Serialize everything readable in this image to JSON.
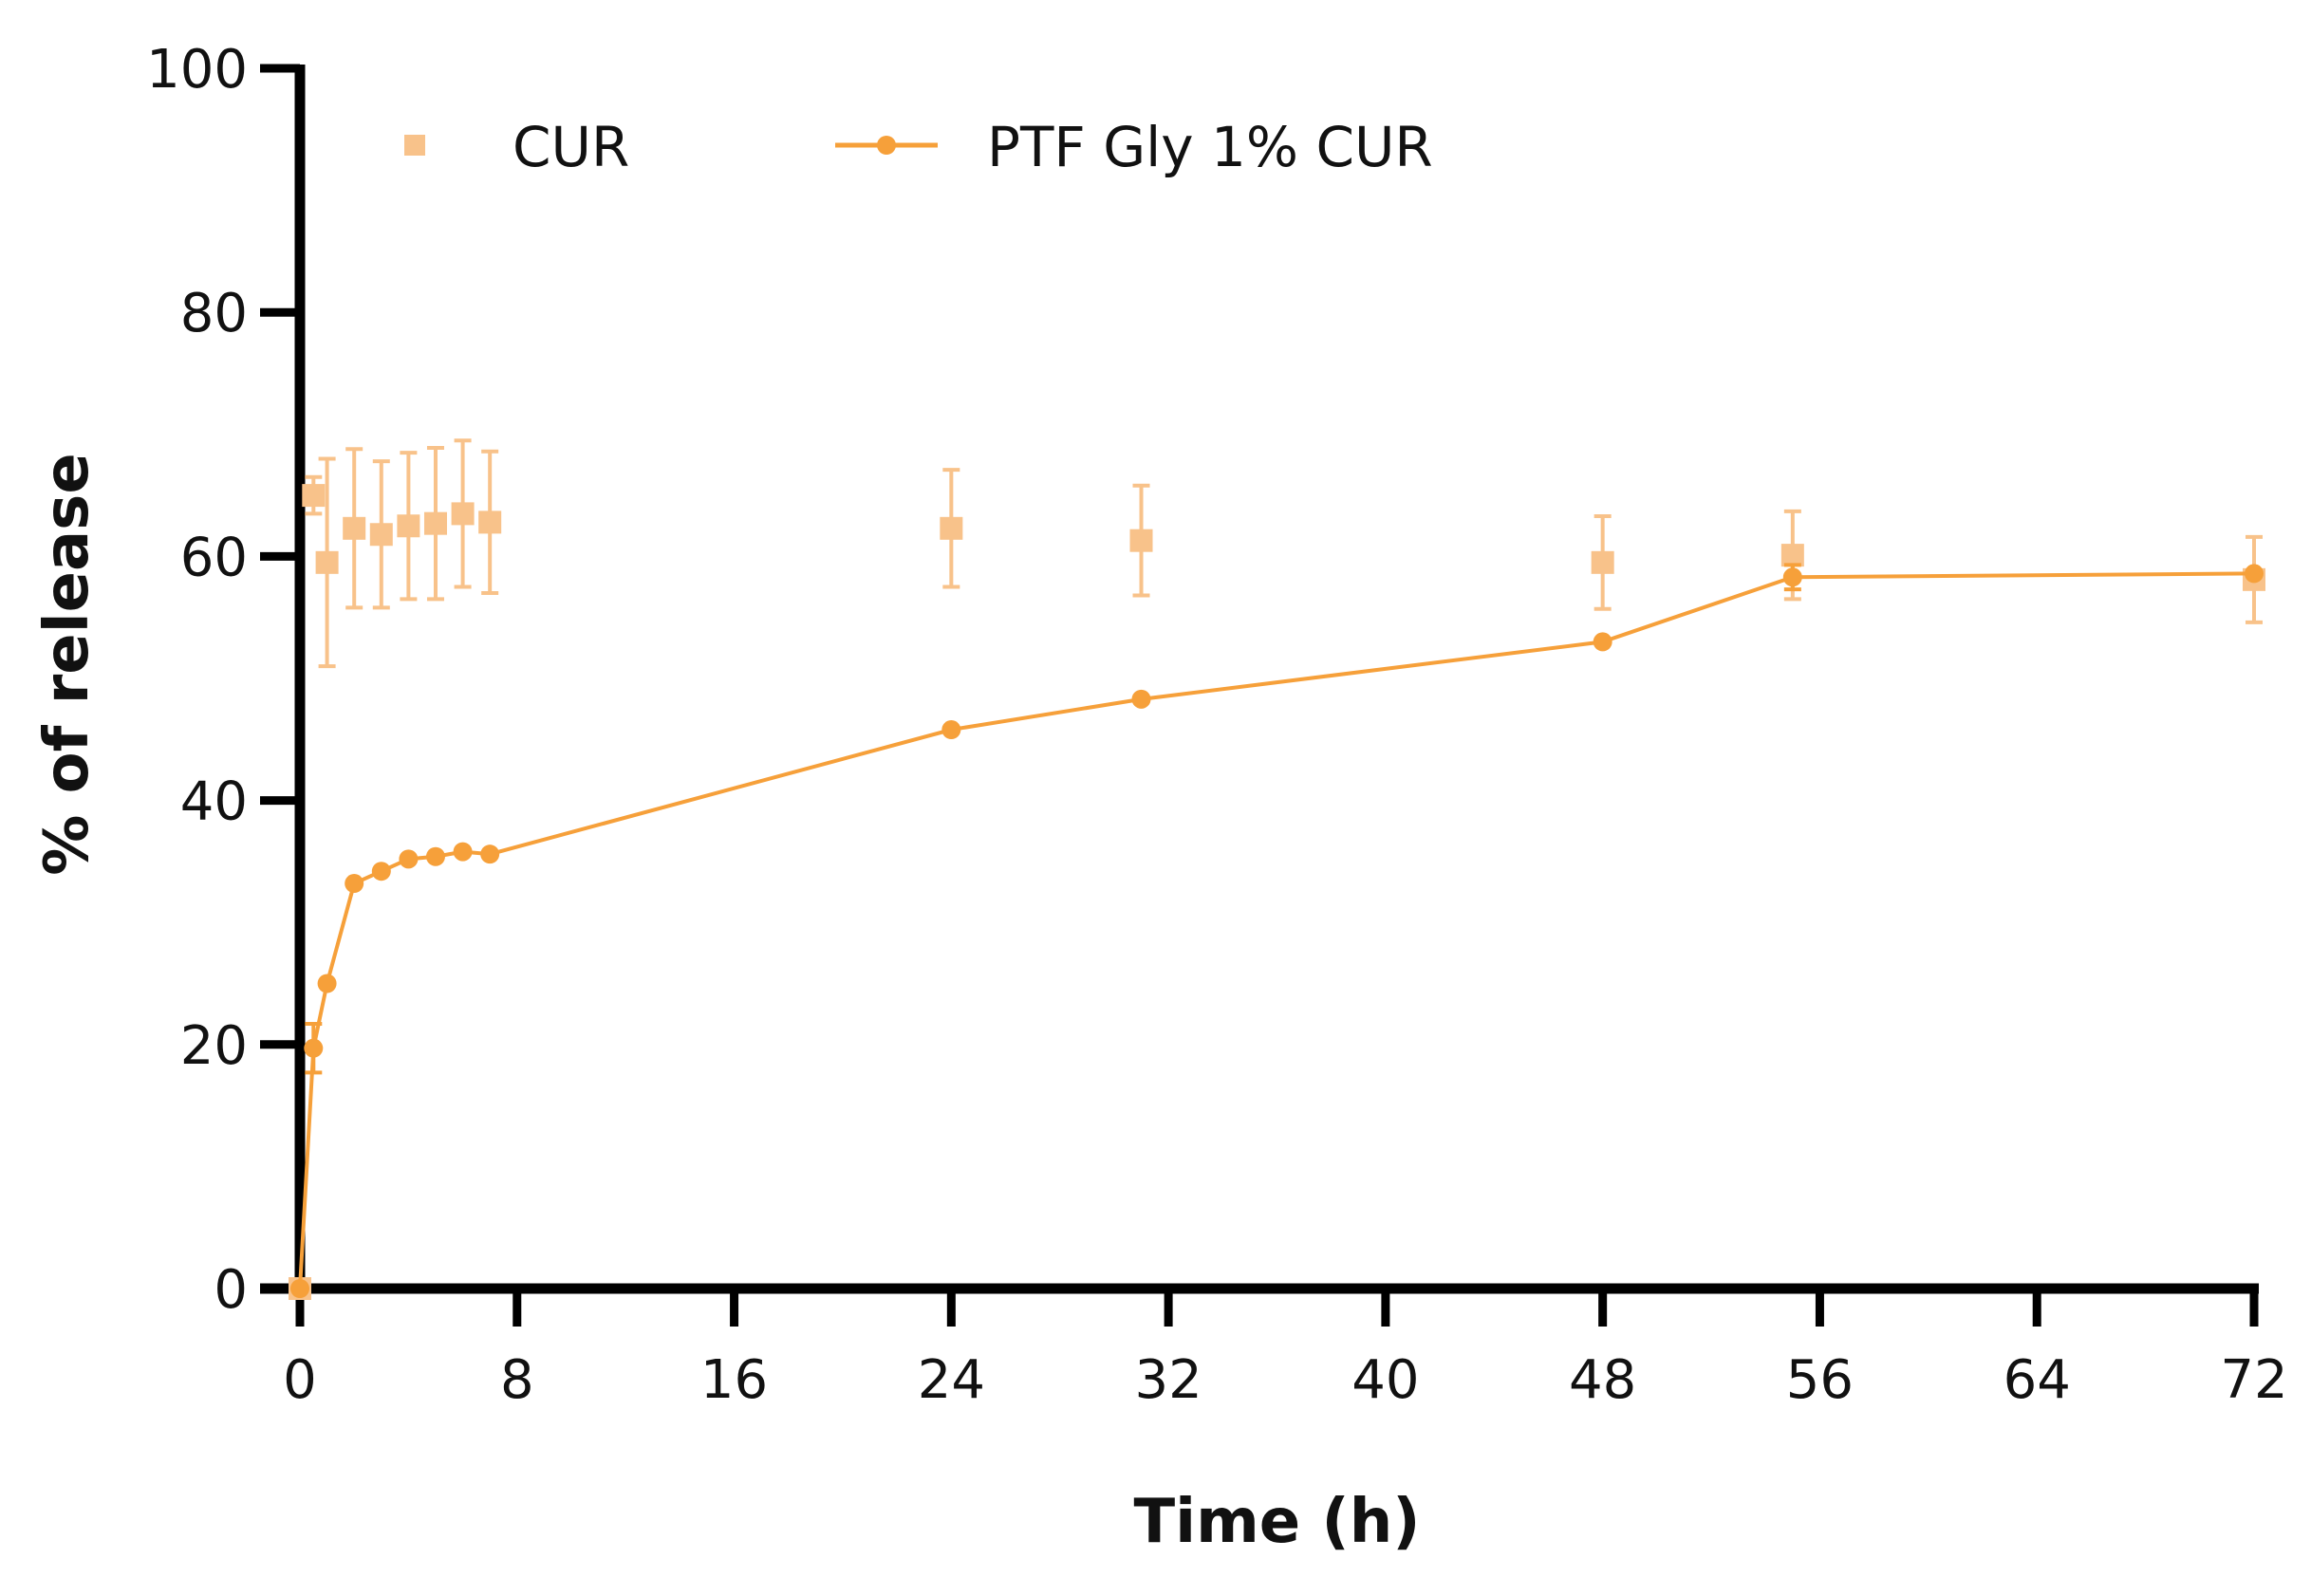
{
  "chart_data": {
    "type": "line",
    "title": "",
    "xlabel": "Time (h)",
    "ylabel": "% of release",
    "xlim": [
      0,
      72
    ],
    "ylim": [
      0,
      100
    ],
    "xticks": [
      0,
      8,
      16,
      24,
      32,
      40,
      48,
      56,
      64,
      72
    ],
    "yticks": [
      0,
      20,
      40,
      60,
      80,
      100
    ],
    "grid": false,
    "legend_position": "top",
    "colors": {
      "axis": "#000000",
      "cur": "#f8c28a",
      "ptf": "#f6a03a"
    },
    "series": [
      {
        "name": "CUR",
        "marker": "square",
        "line": false,
        "x": [
          0,
          0.5,
          1,
          2,
          3,
          4,
          5,
          6,
          7,
          24,
          31,
          48,
          55,
          72
        ],
        "y": [
          0,
          65,
          59.5,
          62.3,
          61.8,
          62.5,
          62.7,
          63.5,
          62.8,
          62.3,
          61.3,
          59.5,
          60.1,
          58.1
        ],
        "error": [
          0,
          1.5,
          8.5,
          6.5,
          6,
          6,
          6.2,
          6,
          5.8,
          4.8,
          4.5,
          3.8,
          3.6,
          3.5
        ]
      },
      {
        "name": "PTF Gly 1% CUR",
        "marker": "circle",
        "line": true,
        "x": [
          0,
          0.5,
          1,
          2,
          3,
          4,
          5,
          6,
          7,
          24,
          31,
          48,
          55,
          72
        ],
        "y": [
          0,
          19.7,
          25,
          33.2,
          34.2,
          35.2,
          35.4,
          35.8,
          35.6,
          45.8,
          48.3,
          53,
          58.3,
          58.6
        ],
        "error": [
          0,
          2,
          0,
          0,
          0,
          0,
          0,
          0,
          0,
          0,
          0,
          0,
          1,
          0
        ]
      }
    ]
  }
}
